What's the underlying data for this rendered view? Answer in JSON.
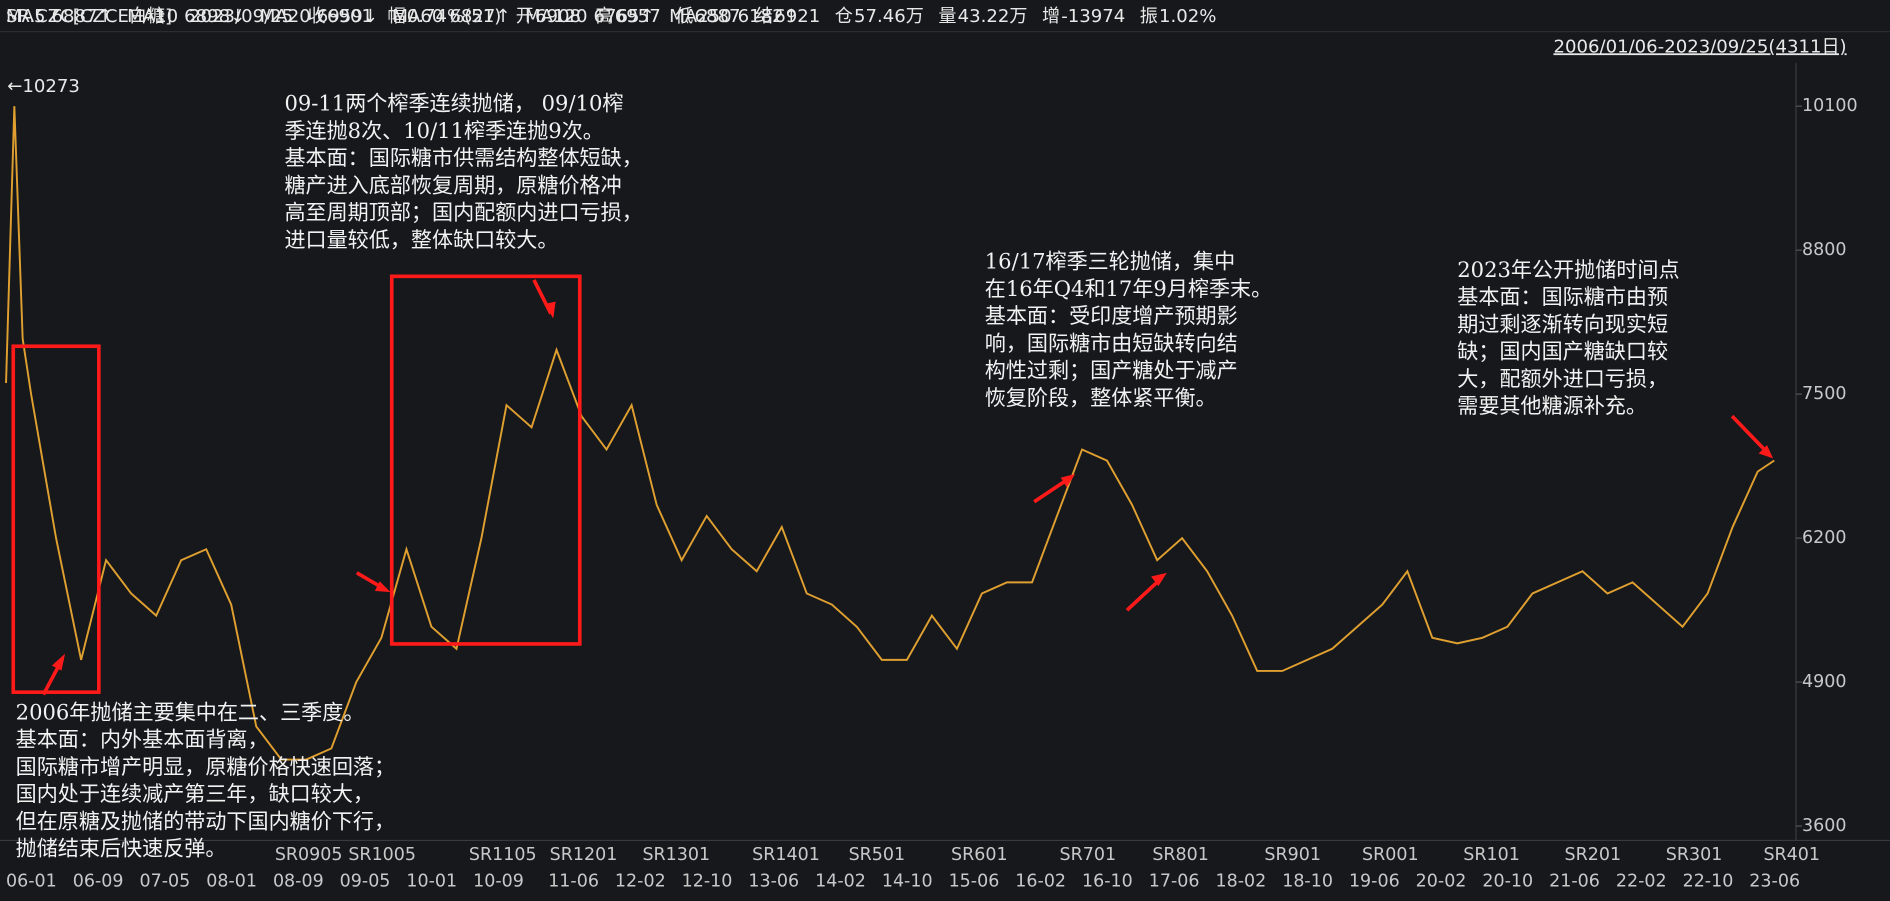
{
  "header": {
    "symbol": "SR.CZC[CZCE白糖]",
    "date": "2023/09/25",
    "items": [
      {
        "label": "收",
        "value": "6901",
        "color": "#ff4040"
      },
      {
        "label": "幅",
        "value": "0.74%(51)",
        "color": "#ff4040"
      },
      {
        "label": "开",
        "value": "6908",
        "color": "#ff4040"
      },
      {
        "label": "高",
        "value": "6957",
        "color": "#ff4040"
      },
      {
        "label": "低",
        "value": "6887",
        "color": "#ff4040"
      },
      {
        "label": "结",
        "value": "6921",
        "color": "#ff4040"
      },
      {
        "label": "仓",
        "value": "57.46万",
        "color": "#e8e8e8"
      },
      {
        "label": "量",
        "value": "43.22万",
        "color": "#e8e8e8"
      },
      {
        "label": "增",
        "value": "-13974",
        "color": "#2fd05a"
      },
      {
        "label": "振",
        "value": "1.02%",
        "color": "#e8e8e8"
      }
    ],
    "range": "2006/01/06-2023/09/25(4311日)"
  },
  "ma_row": [
    {
      "name": "MA5",
      "value": "6887↑",
      "color": "#ff9b2f"
    },
    {
      "name": "MA10",
      "value": "6898↓",
      "color": "#ffe23a"
    },
    {
      "name": "MA20",
      "value": "6959↓",
      "color": "#ff3cff"
    },
    {
      "name": "MA60",
      "value": "6827↑",
      "color": "#2fd05a"
    },
    {
      "name": "MA120",
      "value": "6765↑",
      "color": "#35d6e6"
    },
    {
      "name": "MA250",
      "value": "6182↑",
      "color": "#ff5a5a"
    }
  ],
  "chart_data": {
    "type": "line",
    "color": "#e0a030",
    "x": [
      "06-01",
      "06-02",
      "06-03",
      "06-04",
      "06-07",
      "06-10",
      "07-01",
      "07-04",
      "07-07",
      "07-10",
      "08-01",
      "08-04",
      "08-07",
      "08-10",
      "09-01",
      "09-04",
      "09-07",
      "09-10",
      "10-01",
      "10-04",
      "10-07",
      "10-10",
      "11-01",
      "11-04",
      "11-07",
      "11-10",
      "12-01",
      "12-04",
      "12-07",
      "12-10",
      "13-01",
      "13-04",
      "13-07",
      "13-10",
      "14-01",
      "14-04",
      "14-07",
      "14-10",
      "15-01",
      "15-04",
      "15-07",
      "15-10",
      "16-01",
      "16-04",
      "16-07",
      "16-10",
      "17-01",
      "17-04",
      "17-07",
      "17-10",
      "18-01",
      "18-04",
      "18-07",
      "18-10",
      "19-01",
      "19-04",
      "19-07",
      "19-10",
      "20-01",
      "20-04",
      "20-07",
      "20-10",
      "21-01",
      "21-04",
      "21-07",
      "21-10",
      "22-01",
      "22-04",
      "22-07",
      "22-10",
      "23-01",
      "23-04",
      "23-07",
      "23-09"
    ],
    "values": [
      7600,
      10100,
      8000,
      7500,
      6200,
      5100,
      6000,
      5700,
      5500,
      6000,
      6100,
      5600,
      4500,
      4200,
      4200,
      4300,
      4900,
      5300,
      6100,
      5400,
      5200,
      6200,
      7400,
      7200,
      7900,
      7300,
      7000,
      7400,
      6500,
      6000,
      6400,
      6100,
      5900,
      6300,
      5700,
      5600,
      5400,
      5100,
      5100,
      5500,
      5200,
      5700,
      5800,
      5800,
      6400,
      7000,
      6900,
      6500,
      6000,
      6200,
      5900,
      5500,
      5000,
      5000,
      5100,
      5200,
      5400,
      5600,
      5900,
      5300,
      5250,
      5300,
      5400,
      5700,
      5800,
      5900,
      5700,
      5800,
      5600,
      5400,
      5700,
      6300,
      6800,
      6901
    ],
    "ylim": [
      3470,
      10490
    ],
    "yticks": [
      3600,
      4900,
      6200,
      7500,
      8800,
      10100
    ],
    "x_labels": [
      "06-01",
      "06-09",
      "07-05",
      "08-01",
      "08-09",
      "09-05",
      "10-01",
      "10-09",
      "11-06",
      "12-02",
      "12-10",
      "13-06",
      "14-02",
      "14-10",
      "15-06",
      "16-02",
      "16-10",
      "17-06",
      "18-02",
      "18-10",
      "19-06",
      "20-02",
      "20-10",
      "21-06",
      "22-02",
      "22-10",
      "23-06"
    ],
    "contract_labels": [
      "SR0905",
      "SR1005",
      "SR1105",
      "SR1201",
      "SR1301",
      "SR1401",
      "SR501",
      "SR601",
      "SR701",
      "SR801",
      "SR901",
      "SR001",
      "SR101",
      "SR201",
      "SR301",
      "SR401"
    ],
    "max_label": "←10273",
    "annotations": [
      [
        "2006年抛储主要集中在二、三季度。",
        "基本面：内外基本面背离，",
        "国际糖市增产明显，原糖价格快速回落；",
        "国内处于连续减产第三年，缺口较大，",
        "但在原糖及抛储的带动下国内糖价下行，",
        "抛储结束后快速反弹。"
      ],
      [
        "09-11两个榨季连续抛储， 09/10榨",
        "季连抛8次、10/11榨季连抛9次。",
        "基本面：国际糖市供需结构整体短缺，",
        "糖产进入底部恢复周期，原糖价格冲",
        "高至周期顶部；国内配额内进口亏损，",
        "进口量较低，整体缺口较大。"
      ],
      [
        "16/17榨季三轮抛储，集中",
        "在16年Q4和17年9月榨季末。",
        "基本面：受印度增产预期影",
        "响，国际糖市由短缺转向结",
        "构性过剩；国产糖处于减产",
        "恢复阶段，整体紧平衡。"
      ],
      [
        "2023年公开抛储时间点",
        "基本面：国际糖市由预",
        "期过剩逐渐转向现实短",
        "缺；国内国产糖缺口较",
        "大，配额外进口亏损，",
        "需要其他糖源补充。"
      ]
    ]
  }
}
